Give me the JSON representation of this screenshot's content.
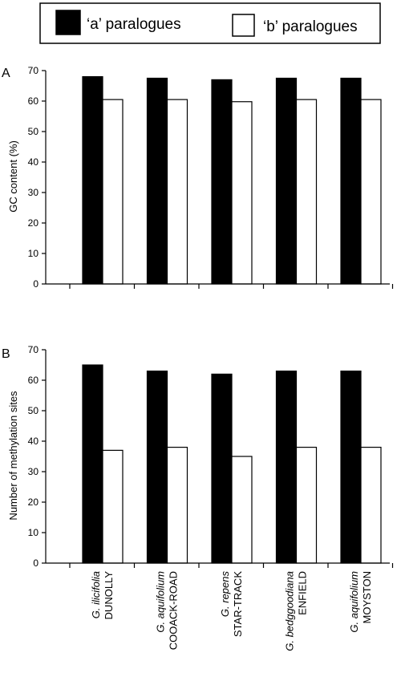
{
  "legend": {
    "a_label": "‘a’ paralogues",
    "b_label": "‘b’ paralogues",
    "a_color": "#000000",
    "b_color": "#ffffff"
  },
  "chart_data": [
    {
      "type": "bar",
      "panel": "A",
      "categories": [
        {
          "species": "G. ilicifolia",
          "population": "DUNOLLY"
        },
        {
          "species": "G. aquifolium",
          "population": "COOACK-ROAD"
        },
        {
          "species": "G. repens",
          "population": "STAR-TRACK"
        },
        {
          "species": "G. bedggoodiana",
          "population": "ENFIELD"
        },
        {
          "species": "G. aquifolium",
          "population": "MOYSTON"
        }
      ],
      "series": [
        {
          "name": "‘a’ paralogues",
          "values": [
            68,
            67.5,
            67,
            67.5,
            67.5
          ]
        },
        {
          "name": "‘b’ paralogues",
          "values": [
            60.5,
            60.5,
            59.8,
            60.5,
            60.5
          ]
        }
      ],
      "ylabel": "GC content (%)",
      "ylim": [
        0,
        70
      ],
      "yticks": [
        0,
        10,
        20,
        30,
        40,
        50,
        60,
        70
      ]
    },
    {
      "type": "bar",
      "panel": "B",
      "categories": [
        {
          "species": "G. ilicifolia",
          "population": "DUNOLLY"
        },
        {
          "species": "G. aquifolium",
          "population": "COOACK-ROAD"
        },
        {
          "species": "G. repens",
          "population": "STAR-TRACK"
        },
        {
          "species": "G. bedggoodiana",
          "population": "ENFIELD"
        },
        {
          "species": "G. aquifolium",
          "population": "MOYSTON"
        }
      ],
      "series": [
        {
          "name": "‘a’ paralogues",
          "values": [
            65,
            63,
            62,
            63,
            63
          ]
        },
        {
          "name": "‘b’ paralogues",
          "values": [
            37,
            38,
            35,
            38,
            38
          ]
        }
      ],
      "ylabel": "Number of methylation sites",
      "ylim": [
        0,
        70
      ],
      "yticks": [
        0,
        10,
        20,
        30,
        40,
        50,
        60,
        70
      ]
    }
  ]
}
